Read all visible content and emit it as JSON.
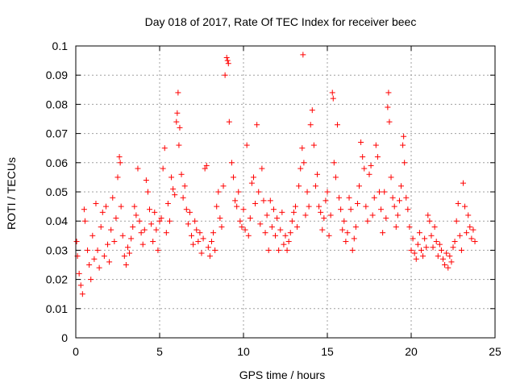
{
  "chart_data": {
    "type": "scatter",
    "title": "Day 018 of 2017, Rate Of TEC Index for receiver beec",
    "xlabel": "GPS time / hours",
    "ylabel": "ROTI / TECUs",
    "xlim": [
      0,
      25
    ],
    "ylim": [
      0,
      0.1
    ],
    "xticks": [
      "0",
      "5",
      "10",
      "15",
      "20",
      "25"
    ],
    "yticks": [
      "0",
      "0.01",
      "0.02",
      "0.03",
      "0.04",
      "0.05",
      "0.06",
      "0.07",
      "0.08",
      "0.09",
      "0.1"
    ],
    "grid": true,
    "marker": "plus",
    "color": "#ff0000",
    "series": [
      {
        "points": [
          [
            0.05,
            0.033
          ],
          [
            0.1,
            0.028
          ],
          [
            0.2,
            0.022
          ],
          [
            0.3,
            0.018
          ],
          [
            0.4,
            0.015
          ],
          [
            0.5,
            0.044
          ],
          [
            0.55,
            0.04
          ],
          [
            0.7,
            0.03
          ],
          [
            0.8,
            0.025
          ],
          [
            0.9,
            0.02
          ],
          [
            1.0,
            0.035
          ],
          [
            1.1,
            0.027
          ],
          [
            1.2,
            0.046
          ],
          [
            1.3,
            0.03
          ],
          [
            1.4,
            0.024
          ],
          [
            1.5,
            0.038
          ],
          [
            1.6,
            0.043
          ],
          [
            1.7,
            0.028
          ],
          [
            1.8,
            0.045
          ],
          [
            1.9,
            0.032
          ],
          [
            2.0,
            0.026
          ],
          [
            2.1,
            0.037
          ],
          [
            2.2,
            0.048
          ],
          [
            2.3,
            0.033
          ],
          [
            2.4,
            0.041
          ],
          [
            2.5,
            0.055
          ],
          [
            2.6,
            0.062
          ],
          [
            2.65,
            0.06
          ],
          [
            2.7,
            0.045
          ],
          [
            2.8,
            0.035
          ],
          [
            2.9,
            0.028
          ],
          [
            3.0,
            0.025
          ],
          [
            3.1,
            0.031
          ],
          [
            3.2,
            0.029
          ],
          [
            3.3,
            0.034
          ],
          [
            3.4,
            0.038
          ],
          [
            3.5,
            0.045
          ],
          [
            3.6,
            0.042
          ],
          [
            3.7,
            0.058
          ],
          [
            3.8,
            0.04
          ],
          [
            3.9,
            0.036
          ],
          [
            4.0,
            0.032
          ],
          [
            4.1,
            0.037
          ],
          [
            4.2,
            0.054
          ],
          [
            4.3,
            0.05
          ],
          [
            4.4,
            0.044
          ],
          [
            4.5,
            0.039
          ],
          [
            4.6,
            0.033
          ],
          [
            4.7,
            0.043
          ],
          [
            4.8,
            0.037
          ],
          [
            4.9,
            0.03
          ],
          [
            5.0,
            0.04
          ],
          [
            5.1,
            0.041
          ],
          [
            5.2,
            0.058
          ],
          [
            5.3,
            0.065
          ],
          [
            5.4,
            0.036
          ],
          [
            5.5,
            0.046
          ],
          [
            5.6,
            0.04
          ],
          [
            5.7,
            0.055
          ],
          [
            5.8,
            0.051
          ],
          [
            5.9,
            0.049
          ],
          [
            6.0,
            0.074
          ],
          [
            6.05,
            0.077
          ],
          [
            6.1,
            0.084
          ],
          [
            6.15,
            0.066
          ],
          [
            6.2,
            0.072
          ],
          [
            6.3,
            0.056
          ],
          [
            6.4,
            0.048
          ],
          [
            6.5,
            0.052
          ],
          [
            6.6,
            0.044
          ],
          [
            6.7,
            0.039
          ],
          [
            6.8,
            0.043
          ],
          [
            6.9,
            0.035
          ],
          [
            7.0,
            0.032
          ],
          [
            7.1,
            0.04
          ],
          [
            7.2,
            0.037
          ],
          [
            7.3,
            0.033
          ],
          [
            7.4,
            0.036
          ],
          [
            7.5,
            0.029
          ],
          [
            7.6,
            0.034
          ],
          [
            7.7,
            0.058
          ],
          [
            7.8,
            0.059
          ],
          [
            7.9,
            0.031
          ],
          [
            8.0,
            0.028
          ],
          [
            8.1,
            0.033
          ],
          [
            8.2,
            0.036
          ],
          [
            8.3,
            0.03
          ],
          [
            8.4,
            0.045
          ],
          [
            8.5,
            0.05
          ],
          [
            8.6,
            0.041
          ],
          [
            8.7,
            0.038
          ],
          [
            8.8,
            0.052
          ],
          [
            8.9,
            0.09
          ],
          [
            9.0,
            0.096
          ],
          [
            9.05,
            0.095
          ],
          [
            9.1,
            0.094
          ],
          [
            9.15,
            0.074
          ],
          [
            9.3,
            0.06
          ],
          [
            9.4,
            0.055
          ],
          [
            9.5,
            0.047
          ],
          [
            9.6,
            0.045
          ],
          [
            9.7,
            0.05
          ],
          [
            9.8,
            0.04
          ],
          [
            9.9,
            0.038
          ],
          [
            10.0,
            0.044
          ],
          [
            10.1,
            0.037
          ],
          [
            10.2,
            0.066
          ],
          [
            10.3,
            0.035
          ],
          [
            10.4,
            0.041
          ],
          [
            10.5,
            0.053
          ],
          [
            10.6,
            0.055
          ],
          [
            10.7,
            0.046
          ],
          [
            10.8,
            0.073
          ],
          [
            10.9,
            0.05
          ],
          [
            11.0,
            0.039
          ],
          [
            11.1,
            0.058
          ],
          [
            11.2,
            0.047
          ],
          [
            11.3,
            0.036
          ],
          [
            11.4,
            0.042
          ],
          [
            11.5,
            0.03
          ],
          [
            11.6,
            0.047
          ],
          [
            11.7,
            0.038
          ],
          [
            11.8,
            0.044
          ],
          [
            11.9,
            0.035
          ],
          [
            12.0,
            0.041
          ],
          [
            12.1,
            0.03
          ],
          [
            12.2,
            0.037
          ],
          [
            12.3,
            0.043
          ],
          [
            12.4,
            0.032
          ],
          [
            12.5,
            0.035
          ],
          [
            12.6,
            0.03
          ],
          [
            12.7,
            0.033
          ],
          [
            12.8,
            0.036
          ],
          [
            12.9,
            0.04
          ],
          [
            13.0,
            0.043
          ],
          [
            13.1,
            0.045
          ],
          [
            13.2,
            0.038
          ],
          [
            13.3,
            0.052
          ],
          [
            13.4,
            0.058
          ],
          [
            13.5,
            0.065
          ],
          [
            13.55,
            0.097
          ],
          [
            13.6,
            0.06
          ],
          [
            13.7,
            0.042
          ],
          [
            13.8,
            0.05
          ],
          [
            13.9,
            0.045
          ],
          [
            14.0,
            0.073
          ],
          [
            14.1,
            0.078
          ],
          [
            14.2,
            0.066
          ],
          [
            14.3,
            0.052
          ],
          [
            14.4,
            0.056
          ],
          [
            14.5,
            0.045
          ],
          [
            14.6,
            0.043
          ],
          [
            14.7,
            0.037
          ],
          [
            14.8,
            0.041
          ],
          [
            14.9,
            0.047
          ],
          [
            15.0,
            0.05
          ],
          [
            15.1,
            0.035
          ],
          [
            15.2,
            0.042
          ],
          [
            15.3,
            0.084
          ],
          [
            15.35,
            0.082
          ],
          [
            15.4,
            0.06
          ],
          [
            15.5,
            0.055
          ],
          [
            15.6,
            0.073
          ],
          [
            15.7,
            0.048
          ],
          [
            15.8,
            0.044
          ],
          [
            15.9,
            0.037
          ],
          [
            16.0,
            0.04
          ],
          [
            16.1,
            0.033
          ],
          [
            16.2,
            0.036
          ],
          [
            16.3,
            0.048
          ],
          [
            16.4,
            0.044
          ],
          [
            16.5,
            0.03
          ],
          [
            16.6,
            0.034
          ],
          [
            16.7,
            0.038
          ],
          [
            16.8,
            0.046
          ],
          [
            16.9,
            0.052
          ],
          [
            17.0,
            0.067
          ],
          [
            17.1,
            0.062
          ],
          [
            17.2,
            0.058
          ],
          [
            17.3,
            0.045
          ],
          [
            17.4,
            0.04
          ],
          [
            17.5,
            0.056
          ],
          [
            17.6,
            0.059
          ],
          [
            17.7,
            0.042
          ],
          [
            17.8,
            0.048
          ],
          [
            17.9,
            0.066
          ],
          [
            18.0,
            0.062
          ],
          [
            18.1,
            0.05
          ],
          [
            18.2,
            0.044
          ],
          [
            18.3,
            0.036
          ],
          [
            18.4,
            0.05
          ],
          [
            18.5,
            0.041
          ],
          [
            18.6,
            0.079
          ],
          [
            18.65,
            0.084
          ],
          [
            18.7,
            0.074
          ],
          [
            18.8,
            0.055
          ],
          [
            18.9,
            0.048
          ],
          [
            19.0,
            0.045
          ],
          [
            19.1,
            0.038
          ],
          [
            19.2,
            0.042
          ],
          [
            19.3,
            0.047
          ],
          [
            19.4,
            0.052
          ],
          [
            19.5,
            0.066
          ],
          [
            19.55,
            0.069
          ],
          [
            19.6,
            0.06
          ],
          [
            19.7,
            0.048
          ],
          [
            19.8,
            0.044
          ],
          [
            19.9,
            0.038
          ],
          [
            20.0,
            0.03
          ],
          [
            20.1,
            0.034
          ],
          [
            20.2,
            0.029
          ],
          [
            20.3,
            0.027
          ],
          [
            20.4,
            0.032
          ],
          [
            20.5,
            0.036
          ],
          [
            20.6,
            0.03
          ],
          [
            20.7,
            0.028
          ],
          [
            20.8,
            0.034
          ],
          [
            20.9,
            0.031
          ],
          [
            21.0,
            0.042
          ],
          [
            21.1,
            0.04
          ],
          [
            21.2,
            0.035
          ],
          [
            21.3,
            0.031
          ],
          [
            21.4,
            0.038
          ],
          [
            21.5,
            0.033
          ],
          [
            21.6,
            0.028
          ],
          [
            21.7,
            0.032
          ],
          [
            21.8,
            0.03
          ],
          [
            21.9,
            0.027
          ],
          [
            22.0,
            0.025
          ],
          [
            22.1,
            0.029
          ],
          [
            22.2,
            0.024
          ],
          [
            22.3,
            0.028
          ],
          [
            22.4,
            0.026
          ],
          [
            22.5,
            0.031
          ],
          [
            22.6,
            0.033
          ],
          [
            22.7,
            0.04
          ],
          [
            22.8,
            0.046
          ],
          [
            22.9,
            0.035
          ],
          [
            23.0,
            0.03
          ],
          [
            23.1,
            0.053
          ],
          [
            23.2,
            0.045
          ],
          [
            23.3,
            0.036
          ],
          [
            23.4,
            0.042
          ],
          [
            23.5,
            0.038
          ],
          [
            23.6,
            0.034
          ],
          [
            23.7,
            0.037
          ],
          [
            23.8,
            0.033
          ]
        ]
      }
    ]
  }
}
